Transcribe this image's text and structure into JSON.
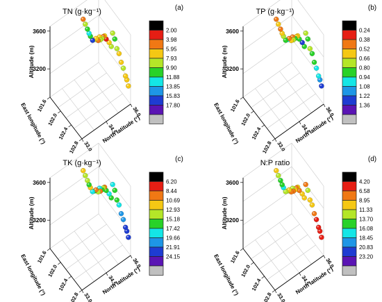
{
  "chart_data": [
    {
      "panel": "(a)",
      "type": "scatter",
      "title": "TN (g·kg⁻¹)",
      "zlabel": "Altitude (m)",
      "xlabel": "East longitude (°)",
      "ylabel": "North latitude (°)",
      "z_ticks": [
        "3600",
        "3200"
      ],
      "x_ticks": [
        "101.6",
        "102.0",
        "102.4",
        "102.8"
      ],
      "y_ticks": [
        "33.0",
        "34.5",
        "36.0"
      ],
      "colorbar_labels": [
        "2.00",
        "3.98",
        "5.95",
        "7.93",
        "9.90",
        "11.88",
        "13.85",
        "15.83",
        "17.80"
      ],
      "colorbar_colors": [
        "#000000",
        "#e61e14",
        "#f07814",
        "#f5c814",
        "#b4e628",
        "#28d228",
        "#14e6e6",
        "#1e96e6",
        "#1e3cd2",
        "#5a14b4",
        "#c0c0c0"
      ],
      "points": [
        {
          "lon": 101.75,
          "lat": 34.8,
          "alt": 3560,
          "v": 4.5
        },
        {
          "lon": 101.8,
          "lat": 34.85,
          "alt": 3520,
          "v": 9.0
        },
        {
          "lon": 101.85,
          "lat": 34.9,
          "alt": 3480,
          "v": 10.5
        },
        {
          "lon": 101.88,
          "lat": 34.95,
          "alt": 3440,
          "v": 12.0
        },
        {
          "lon": 101.9,
          "lat": 35.0,
          "alt": 3410,
          "v": 11.0
        },
        {
          "lon": 101.95,
          "lat": 35.05,
          "alt": 3380,
          "v": 16.5
        },
        {
          "lon": 102.0,
          "lat": 35.1,
          "alt": 3400,
          "v": 8.5
        },
        {
          "lon": 102.05,
          "lat": 35.1,
          "alt": 3430,
          "v": 7.0
        },
        {
          "lon": 102.1,
          "lat": 35.15,
          "alt": 3420,
          "v": 5.0
        },
        {
          "lon": 102.12,
          "lat": 35.2,
          "alt": 3460,
          "v": 6.0
        },
        {
          "lon": 102.15,
          "lat": 35.2,
          "alt": 3440,
          "v": 9.5
        },
        {
          "lon": 102.18,
          "lat": 35.25,
          "alt": 3460,
          "v": 8.0
        },
        {
          "lon": 102.2,
          "lat": 35.3,
          "alt": 3480,
          "v": 4.0
        },
        {
          "lon": 102.22,
          "lat": 35.35,
          "alt": 3490,
          "v": 6.5
        },
        {
          "lon": 102.25,
          "lat": 35.4,
          "alt": 3460,
          "v": 3.5
        },
        {
          "lon": 102.3,
          "lat": 35.5,
          "alt": 3430,
          "v": 7.5
        },
        {
          "lon": 102.35,
          "lat": 35.55,
          "alt": 3400,
          "v": 8.8
        },
        {
          "lon": 102.4,
          "lat": 35.55,
          "alt": 3560,
          "v": 9.2
        },
        {
          "lon": 102.45,
          "lat": 35.6,
          "alt": 3510,
          "v": 10.0
        },
        {
          "lon": 102.5,
          "lat": 35.65,
          "alt": 3420,
          "v": 8.0
        },
        {
          "lon": 102.55,
          "lat": 35.7,
          "alt": 3380,
          "v": 7.2
        },
        {
          "lon": 102.6,
          "lat": 35.75,
          "alt": 3300,
          "v": 6.2
        },
        {
          "lon": 102.65,
          "lat": 35.8,
          "alt": 3250,
          "v": 8.5
        },
        {
          "lon": 102.7,
          "lat": 35.85,
          "alt": 3180,
          "v": 7.0
        },
        {
          "lon": 102.72,
          "lat": 35.9,
          "alt": 3140,
          "v": 6.0
        },
        {
          "lon": 102.75,
          "lat": 35.95,
          "alt": 3080,
          "v": 6.8
        }
      ]
    },
    {
      "panel": "(b)",
      "type": "scatter",
      "title": "TP (g·kg⁻¹)",
      "zlabel": "Altitude (m)",
      "xlabel": "East longitude (°)",
      "ylabel": "North latitude (°)",
      "z_ticks": [
        "3600",
        "3200"
      ],
      "x_ticks": [
        "101.6",
        "102.0",
        "102.4",
        "102.8"
      ],
      "y_ticks": [
        "33.0",
        "34.5",
        "36.0"
      ],
      "colorbar_labels": [
        "0.24",
        "0.38",
        "0.52",
        "0.66",
        "0.80",
        "0.94",
        "1.08",
        "1.22",
        "1.36"
      ],
      "colorbar_colors": [
        "#000000",
        "#e61e14",
        "#f07814",
        "#f5c814",
        "#b4e628",
        "#28d228",
        "#14e6e6",
        "#1e96e6",
        "#1e3cd2",
        "#5a14b4",
        "#c0c0c0"
      ],
      "points": [
        {
          "lon": 101.75,
          "lat": 34.8,
          "alt": 3560,
          "v": 0.4
        },
        {
          "lon": 101.8,
          "lat": 34.85,
          "alt": 3520,
          "v": 0.55
        },
        {
          "lon": 101.85,
          "lat": 34.9,
          "alt": 3480,
          "v": 0.45
        },
        {
          "lon": 101.88,
          "lat": 34.95,
          "alt": 3440,
          "v": 0.6
        },
        {
          "lon": 101.9,
          "lat": 35.0,
          "alt": 3410,
          "v": 0.7
        },
        {
          "lon": 101.95,
          "lat": 35.05,
          "alt": 3380,
          "v": 0.85
        },
        {
          "lon": 102.0,
          "lat": 35.1,
          "alt": 3400,
          "v": 0.95
        },
        {
          "lon": 102.05,
          "lat": 35.1,
          "alt": 3430,
          "v": 0.5
        },
        {
          "lon": 102.1,
          "lat": 35.15,
          "alt": 3420,
          "v": 0.65
        },
        {
          "lon": 102.12,
          "lat": 35.2,
          "alt": 3460,
          "v": 0.42
        },
        {
          "lon": 102.15,
          "lat": 35.2,
          "alt": 3440,
          "v": 0.75
        },
        {
          "lon": 102.18,
          "lat": 35.25,
          "alt": 3460,
          "v": 0.88
        },
        {
          "lon": 102.2,
          "lat": 35.3,
          "alt": 3480,
          "v": 0.62
        },
        {
          "lon": 102.22,
          "lat": 35.35,
          "alt": 3490,
          "v": 0.55
        },
        {
          "lon": 102.25,
          "lat": 35.4,
          "alt": 3460,
          "v": 0.8
        },
        {
          "lon": 102.3,
          "lat": 35.5,
          "alt": 3430,
          "v": 1.25
        },
        {
          "lon": 102.35,
          "lat": 35.55,
          "alt": 3400,
          "v": 0.9
        },
        {
          "lon": 102.4,
          "lat": 35.55,
          "alt": 3560,
          "v": 0.72
        },
        {
          "lon": 102.45,
          "lat": 35.6,
          "alt": 3510,
          "v": 0.84
        },
        {
          "lon": 102.5,
          "lat": 35.65,
          "alt": 3420,
          "v": 0.78
        },
        {
          "lon": 102.55,
          "lat": 35.7,
          "alt": 3380,
          "v": 0.82
        },
        {
          "lon": 102.6,
          "lat": 35.75,
          "alt": 3300,
          "v": 0.86
        },
        {
          "lon": 102.65,
          "lat": 35.8,
          "alt": 3250,
          "v": 0.98
        },
        {
          "lon": 102.7,
          "lat": 35.85,
          "alt": 3180,
          "v": 1.05
        },
        {
          "lon": 102.72,
          "lat": 35.9,
          "alt": 3140,
          "v": 1.15
        },
        {
          "lon": 102.75,
          "lat": 35.95,
          "alt": 3080,
          "v": 1.3
        }
      ]
    },
    {
      "panel": "(c)",
      "type": "scatter",
      "title": "TK (g·kg⁻¹)",
      "zlabel": "Altitude (m)",
      "xlabel": "East longitude (°)",
      "ylabel": "North latitude (°)",
      "z_ticks": [
        "3600",
        "3200"
      ],
      "x_ticks": [
        "101.6",
        "102.0",
        "102.4",
        "102.8"
      ],
      "y_ticks": [
        "33.0",
        "34.5",
        "36.0"
      ],
      "colorbar_labels": [
        "6.20",
        "8.44",
        "10.69",
        "12.93",
        "15.18",
        "17.42",
        "19.66",
        "21.91",
        "24.15"
      ],
      "colorbar_colors": [
        "#000000",
        "#e61e14",
        "#f07814",
        "#f5c814",
        "#b4e628",
        "#28d228",
        "#14e6e6",
        "#1e96e6",
        "#1e3cd2",
        "#5a14b4",
        "#c0c0c0"
      ],
      "points": [
        {
          "lon": 101.75,
          "lat": 34.8,
          "alt": 3560,
          "v": 11.0
        },
        {
          "lon": 101.8,
          "lat": 34.85,
          "alt": 3520,
          "v": 13.5
        },
        {
          "lon": 101.85,
          "lat": 34.9,
          "alt": 3480,
          "v": 15.0
        },
        {
          "lon": 101.88,
          "lat": 34.95,
          "alt": 3440,
          "v": 17.0
        },
        {
          "lon": 101.9,
          "lat": 35.0,
          "alt": 3410,
          "v": 12.0
        },
        {
          "lon": 101.95,
          "lat": 35.05,
          "alt": 3380,
          "v": 19.0
        },
        {
          "lon": 102.0,
          "lat": 35.1,
          "alt": 3400,
          "v": 16.0
        },
        {
          "lon": 102.05,
          "lat": 35.1,
          "alt": 3430,
          "v": 9.5
        },
        {
          "lon": 102.1,
          "lat": 35.15,
          "alt": 3420,
          "v": 14.0
        },
        {
          "lon": 102.12,
          "lat": 35.2,
          "alt": 3460,
          "v": 18.5
        },
        {
          "lon": 102.15,
          "lat": 35.2,
          "alt": 3440,
          "v": 10.5
        },
        {
          "lon": 102.18,
          "lat": 35.25,
          "alt": 3460,
          "v": 16.5
        },
        {
          "lon": 102.2,
          "lat": 35.3,
          "alt": 3480,
          "v": 13.0
        },
        {
          "lon": 102.22,
          "lat": 35.35,
          "alt": 3490,
          "v": 8.8
        },
        {
          "lon": 102.25,
          "lat": 35.4,
          "alt": 3460,
          "v": 15.5
        },
        {
          "lon": 102.3,
          "lat": 35.5,
          "alt": 3430,
          "v": 17.8
        },
        {
          "lon": 102.35,
          "lat": 35.55,
          "alt": 3400,
          "v": 16.2
        },
        {
          "lon": 102.4,
          "lat": 35.55,
          "alt": 3560,
          "v": 19.5
        },
        {
          "lon": 102.45,
          "lat": 35.6,
          "alt": 3510,
          "v": 17.0
        },
        {
          "lon": 102.5,
          "lat": 35.65,
          "alt": 3420,
          "v": 16.0
        },
        {
          "lon": 102.55,
          "lat": 35.7,
          "alt": 3380,
          "v": 18.0
        },
        {
          "lon": 102.6,
          "lat": 35.75,
          "alt": 3300,
          "v": 19.8
        },
        {
          "lon": 102.65,
          "lat": 35.8,
          "alt": 3250,
          "v": 21.0
        },
        {
          "lon": 102.7,
          "lat": 35.85,
          "alt": 3180,
          "v": 22.5
        },
        {
          "lon": 102.72,
          "lat": 35.9,
          "alt": 3140,
          "v": 23.5
        },
        {
          "lon": 102.75,
          "lat": 35.95,
          "alt": 3080,
          "v": 22.0
        }
      ]
    },
    {
      "panel": "(d)",
      "type": "scatter",
      "title": "N:P ratio",
      "zlabel": "Altitude (m)",
      "xlabel": "East longitude (°)",
      "ylabel": "North latitude (°)",
      "z_ticks": [
        "3600",
        "3200"
      ],
      "x_ticks": [
        "101.6",
        "102.0",
        "102.4",
        "102.8"
      ],
      "y_ticks": [
        "33.0",
        "34.5",
        "36.0"
      ],
      "colorbar_labels": [
        "4.20",
        "6.58",
        "8.95",
        "11.33",
        "13.70",
        "16.08",
        "18.45",
        "20.83",
        "23.20"
      ],
      "colorbar_colors": [
        "#000000",
        "#e61e14",
        "#f07814",
        "#f5c814",
        "#b4e628",
        "#28d228",
        "#14e6e6",
        "#1e96e6",
        "#1e3cd2",
        "#5a14b4",
        "#c0c0c0"
      ],
      "points": [
        {
          "lon": 101.75,
          "lat": 34.8,
          "alt": 3560,
          "v": 9.0
        },
        {
          "lon": 101.8,
          "lat": 34.85,
          "alt": 3520,
          "v": 12.0
        },
        {
          "lon": 101.85,
          "lat": 34.9,
          "alt": 3480,
          "v": 15.5
        },
        {
          "lon": 101.88,
          "lat": 34.95,
          "alt": 3440,
          "v": 14.0
        },
        {
          "lon": 101.9,
          "lat": 35.0,
          "alt": 3410,
          "v": 17.0
        },
        {
          "lon": 101.95,
          "lat": 35.05,
          "alt": 3380,
          "v": 11.5
        },
        {
          "lon": 102.0,
          "lat": 35.1,
          "alt": 3400,
          "v": 13.0
        },
        {
          "lon": 102.05,
          "lat": 35.1,
          "alt": 3430,
          "v": 10.0
        },
        {
          "lon": 102.1,
          "lat": 35.15,
          "alt": 3420,
          "v": 8.0
        },
        {
          "lon": 102.12,
          "lat": 35.2,
          "alt": 3460,
          "v": 12.5
        },
        {
          "lon": 102.15,
          "lat": 35.2,
          "alt": 3440,
          "v": 7.5
        },
        {
          "lon": 102.18,
          "lat": 35.25,
          "alt": 3460,
          "v": 10.5
        },
        {
          "lon": 102.2,
          "lat": 35.3,
          "alt": 3480,
          "v": 6.8
        },
        {
          "lon": 102.22,
          "lat": 35.35,
          "alt": 3490,
          "v": 9.5
        },
        {
          "lon": 102.25,
          "lat": 35.4,
          "alt": 3460,
          "v": 7.0
        },
        {
          "lon": 102.3,
          "lat": 35.5,
          "alt": 3430,
          "v": 11.0
        },
        {
          "lon": 102.35,
          "lat": 35.55,
          "alt": 3400,
          "v": 9.8
        },
        {
          "lon": 102.4,
          "lat": 35.55,
          "alt": 3560,
          "v": 8.5
        },
        {
          "lon": 102.45,
          "lat": 35.6,
          "alt": 3510,
          "v": 12.0
        },
        {
          "lon": 102.5,
          "lat": 35.65,
          "alt": 3420,
          "v": 10.2
        },
        {
          "lon": 102.55,
          "lat": 35.7,
          "alt": 3380,
          "v": 9.0
        },
        {
          "lon": 102.6,
          "lat": 35.75,
          "alt": 3300,
          "v": 7.2
        },
        {
          "lon": 102.65,
          "lat": 35.8,
          "alt": 3250,
          "v": 6.5
        },
        {
          "lon": 102.7,
          "lat": 35.85,
          "alt": 3180,
          "v": 5.5
        },
        {
          "lon": 102.72,
          "lat": 35.9,
          "alt": 3140,
          "v": 5.0
        },
        {
          "lon": 102.75,
          "lat": 35.95,
          "alt": 3080,
          "v": 4.8
        }
      ]
    }
  ]
}
